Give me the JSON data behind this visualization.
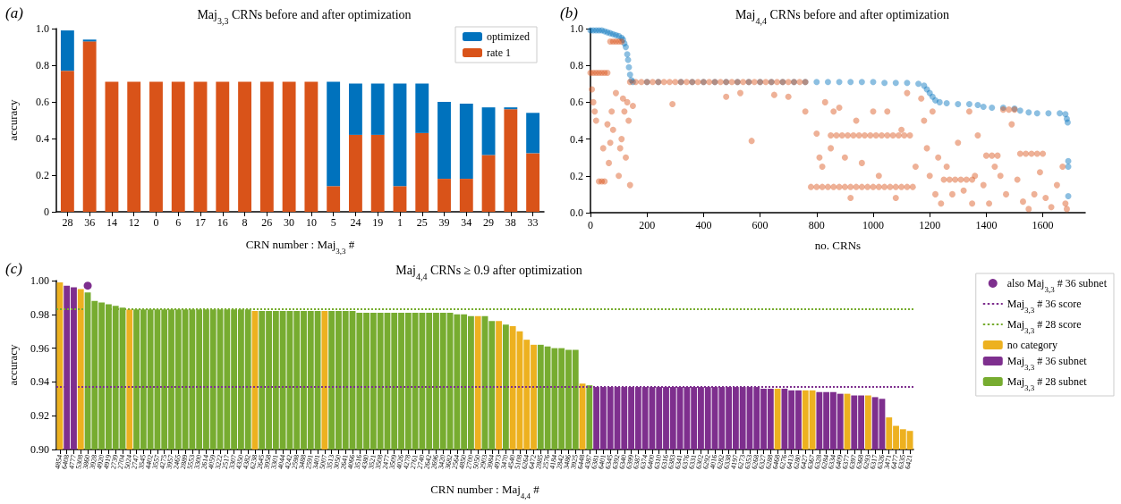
{
  "chart_data": [
    {
      "type": "bar",
      "title": "Maj$_{3,3}$ CRNs before and after optimization",
      "xlabel": "CRN number : Maj$_{3,3}$ #",
      "ylabel": "accuracy",
      "annotations": [
        "(a)"
      ],
      "stacked": true,
      "legend": "top right",
      "categories": [
        "28",
        "36",
        "14",
        "12",
        "0",
        "6",
        "17",
        "16",
        "8",
        "26",
        "30",
        "10",
        "5",
        "24",
        "19",
        "1",
        "25",
        "39",
        "34",
        "29",
        "38",
        "33"
      ],
      "series": [
        {
          "name": "rate 1",
          "color": "#d95319",
          "values": [
            0.77,
            0.93,
            0.71,
            0.71,
            0.71,
            0.71,
            0.71,
            0.71,
            0.71,
            0.71,
            0.71,
            0.71,
            0.14,
            0.42,
            0.42,
            0.14,
            0.43,
            0.18,
            0.18,
            0.31,
            0.56,
            0.32
          ]
        },
        {
          "name": "optimized",
          "color": "#0072bd",
          "values": [
            0.22,
            0.01,
            0,
            0,
            0,
            0,
            0,
            0,
            0,
            0,
            0,
            0,
            0.57,
            0.28,
            0.28,
            0.56,
            0.27,
            0.42,
            0.41,
            0.26,
            0.01,
            0.22
          ]
        }
      ],
      "ylim": [
        0,
        1
      ],
      "yticks": [
        0,
        0.2,
        0.4,
        0.6,
        0.8,
        {
          "value": 1,
          "label": "1.0"
        }
      ]
    },
    {
      "type": "scatter",
      "title": "Maj$_{4,4}$ CRNs before and after optimization",
      "xlabel": "no. CRNs",
      "annotations": [
        "(b)"
      ],
      "marker": "circle",
      "series": [
        {
          "color": "#0072bd",
          "x": [
            0,
            10,
            20,
            30,
            40,
            50,
            60,
            70,
            80,
            90,
            100,
            110,
            115,
            120,
            125,
            130,
            133,
            136,
            140,
            145,
            150,
            200,
            240,
            280,
            320,
            360,
            400,
            440,
            480,
            520,
            560,
            600,
            640,
            680,
            720,
            760,
            800,
            840,
            880,
            920,
            960,
            1000,
            1040,
            1080,
            1120,
            1160,
            1180,
            1190,
            1200,
            1210,
            1220,
            1235,
            1260,
            1300,
            1340,
            1370,
            1390,
            1420,
            1460,
            1500,
            1520,
            1550,
            1580,
            1620,
            1660,
            1680,
            1685,
            1688,
            1690,
            1690,
            1690
          ],
          "values": [
            0.99,
            0.99,
            0.99,
            0.99,
            0.99,
            0.985,
            0.98,
            0.975,
            0.97,
            0.965,
            0.96,
            0.95,
            0.94,
            0.92,
            0.9,
            0.86,
            0.83,
            0.79,
            0.75,
            0.72,
            0.71,
            0.71,
            0.71,
            null,
            0.71,
            0.71,
            0.71,
            0.71,
            0.71,
            0.71,
            0.71,
            0.71,
            0.71,
            0.71,
            0.71,
            0.71,
            0.71,
            0.71,
            0.71,
            0.71,
            0.71,
            0.71,
            0.705,
            0.705,
            0.705,
            0.7,
            0.69,
            0.67,
            0.65,
            0.63,
            0.61,
            0.6,
            0.595,
            0.59,
            0.59,
            0.585,
            0.575,
            0.57,
            0.57,
            0.565,
            0.555,
            0.545,
            0.54,
            0.54,
            0.54,
            0.535,
            0.51,
            0.49,
            0.28,
            0.25,
            0.09
          ]
        },
        {
          "color": "#d95319",
          "x": [
            0,
            10,
            20,
            30,
            40,
            50,
            60,
            70,
            80,
            90,
            100,
            110,
            140,
            160,
            180,
            200,
            220,
            240,
            260,
            280,
            300,
            320,
            340,
            360,
            380,
            400,
            420,
            440,
            460,
            480,
            500,
            520,
            540,
            560,
            580,
            600,
            620,
            640,
            660,
            680,
            700,
            720,
            740,
            760,
            850,
            870,
            890,
            910,
            930,
            950,
            970,
            990,
            1010,
            1030,
            1050,
            1070,
            1090,
            1110,
            1130,
            780,
            800,
            820,
            840,
            860,
            880,
            900,
            920,
            940,
            960,
            980,
            1000,
            1020,
            1040,
            1060,
            1080,
            1100,
            1120,
            1140,
            1250,
            1270,
            1290,
            1310,
            1330,
            1350,
            1400,
            1420,
            1440,
            1460,
            1480,
            1500,
            1520,
            1540,
            1560,
            1580,
            1600,
            5,
            10,
            15,
            20,
            30,
            40,
            50,
            45,
            60,
            70,
            65,
            75,
            80,
            90,
            100,
            105,
            110,
            115,
            120,
            125,
            130,
            135,
            140,
            150,
            290,
            480,
            530,
            570,
            650,
            700,
            760,
            800,
            810,
            820,
            830,
            850,
            860,
            880,
            900,
            920,
            940,
            960,
            1000,
            1020,
            1050,
            1080,
            1100,
            1120,
            1150,
            1170,
            1180,
            1190,
            1200,
            1210,
            1220,
            1230,
            1240,
            1260,
            1280,
            1300,
            1320,
            1340,
            1350,
            1360,
            1370,
            1390,
            1410,
            1430,
            1450,
            1470,
            1490,
            1510,
            1530,
            1550,
            1570,
            1590,
            1610,
            1630,
            1650,
            1670,
            1680,
            1685
          ],
          "values": [
            0.76,
            0.76,
            0.76,
            0.76,
            0.76,
            0.76,
            0.76,
            0.93,
            0.93,
            0.93,
            0.93,
            0.93,
            0.71,
            0.71,
            0.71,
            0.71,
            0.71,
            0.71,
            0.71,
            0.71,
            0.71,
            0.71,
            0.71,
            0.71,
            0.71,
            0.71,
            0.71,
            0.71,
            0.71,
            0.71,
            0.71,
            0.71,
            0.71,
            0.71,
            0.71,
            0.71,
            0.71,
            0.71,
            0.71,
            0.71,
            0.71,
            0.71,
            0.71,
            0.71,
            0.42,
            0.42,
            0.42,
            0.42,
            0.42,
            0.42,
            0.42,
            0.42,
            0.42,
            0.42,
            0.42,
            0.42,
            0.42,
            0.42,
            0.42,
            0.14,
            0.14,
            0.14,
            0.14,
            0.14,
            0.14,
            0.14,
            0.14,
            0.14,
            0.14,
            0.14,
            0.14,
            0.14,
            0.14,
            0.14,
            0.14,
            0.14,
            0.14,
            0.14,
            0.18,
            0.18,
            0.18,
            0.18,
            0.18,
            0.18,
            0.31,
            0.31,
            0.31,
            0.56,
            0.56,
            0.56,
            0.32,
            0.32,
            0.32,
            0.32,
            0.32,
            0.67,
            0.6,
            0.55,
            0.5,
            0.17,
            0.17,
            0.17,
            0.35,
            0.48,
            0.38,
            0.27,
            0.55,
            0.45,
            0.65,
            0.2,
            0.35,
            0.4,
            0.62,
            0.55,
            0.3,
            0.6,
            0.5,
            0.15,
            0.58,
            0.59,
            0.63,
            0.65,
            0.39,
            0.64,
            0.63,
            0.55,
            0.43,
            0.3,
            0.25,
            0.6,
            0.35,
            0.55,
            0.57,
            0.3,
            0.08,
            0.5,
            0.27,
            0.55,
            0.2,
            0.55,
            0.08,
            0.45,
            0.65,
            0.25,
            0.62,
            0.5,
            0.35,
            0.2,
            0.55,
            0.1,
            0.3,
            0.05,
            0.25,
            0.1,
            0.38,
            0.12,
            0.55,
            0.05,
            0.2,
            0.42,
            0.15,
            0.05,
            0.25,
            0.2,
            0.1,
            0.48,
            0.18,
            0.06,
            0.02,
            0.1,
            0.22,
            0.08,
            0.03,
            0.15,
            0.25,
            0.05,
            0.02
          ]
        }
      ],
      "xlim": [
        0,
        1750
      ],
      "xticks": [
        0,
        200,
        400,
        600,
        800,
        1000,
        1200,
        1400,
        1600
      ],
      "ylim": [
        0,
        1
      ],
      "yticks": [
        {
          "value": 0,
          "label": "0.0"
        },
        0.2,
        0.4,
        0.6,
        0.8,
        {
          "value": 1,
          "label": "1.0"
        }
      ]
    },
    {
      "type": "bar",
      "title": "Maj$_{4,4}$ CRNs ≥ 0.9 after optimization",
      "xlabel": "CRN number : Maj$_{4,4}$ #",
      "ylabel": "accuracy",
      "annotations": [
        "(c)"
      ],
      "stacked": true,
      "legend": "right",
      "marker": "circle",
      "categories": [
        "4854",
        "6408",
        "4777",
        "5308",
        "3860",
        "3928",
        "4920",
        "4919",
        "2739",
        "2704",
        "5024",
        "2747",
        "3545",
        "4402",
        "3557",
        "4275",
        "3957",
        "2465",
        "2889",
        "5553",
        "3300",
        "2614",
        "4059",
        "3222",
        "2517",
        "3307",
        "4350",
        "4382",
        "6238",
        "2645",
        "3958",
        "3301",
        "4044",
        "4242",
        "2598",
        "3488",
        "2591",
        "3401",
        "5007",
        "3513",
        "3050",
        "2641",
        "4066",
        "3516",
        "4380",
        "3521",
        "3508",
        "2477",
        "3509",
        "4026",
        "4278",
        "2761",
        "2740",
        "2642",
        "2696",
        "3420",
        "3682",
        "2564",
        "4850",
        "2700",
        "5050",
        "2903",
        "3984",
        "4973",
        "3470",
        "4540",
        "5108",
        "6264",
        "6472",
        "2885",
        "2576",
        "4184",
        "2842",
        "3486",
        "3925",
        "6448",
        "4387",
        "6381",
        "6401",
        "6345",
        "6392",
        "6340",
        "6399",
        "6387",
        "6374",
        "6400",
        "6310",
        "6316",
        "6383",
        "6341",
        "6376",
        "6331",
        "6302",
        "6292",
        "4016",
        "6282",
        "6338",
        "4197",
        "6273",
        "6353",
        "6268",
        "6327",
        "6288",
        "6468",
        "6276",
        "6413",
        "6280",
        "6427",
        "6367",
        "6328",
        "6284",
        "6334",
        "6409",
        "6377",
        "6397",
        "6368",
        "6293",
        "6317",
        "6326",
        "3471",
        "6477",
        "6335",
        "6421"
      ],
      "series": [
        {
          "type": "scatter",
          "name": "also Maj$_{3,3}$ # 36 subnet",
          "color": "#7e2f8e",
          "values": [
            null,
            null,
            null,
            null,
            0.997,
            null,
            null,
            null,
            null,
            null,
            null,
            null,
            null,
            null,
            null,
            null,
            null,
            null,
            null,
            null,
            null,
            null,
            null,
            null,
            null,
            null,
            null,
            null,
            null,
            null,
            null,
            null,
            null,
            null,
            null,
            null,
            null,
            null,
            null,
            null,
            null,
            null,
            null,
            null,
            null,
            null,
            null,
            null,
            null,
            null,
            null,
            null,
            null,
            null,
            null,
            null,
            null,
            null,
            null,
            null,
            null,
            null,
            null,
            null,
            null,
            null,
            null,
            null,
            null,
            null,
            null,
            null,
            null,
            null,
            null,
            null,
            null,
            null,
            null,
            null,
            null,
            null,
            null,
            null,
            null,
            null,
            null,
            null,
            null,
            null,
            null,
            null,
            null,
            null,
            null,
            null,
            null,
            null,
            null,
            null,
            null,
            null,
            null,
            null,
            null,
            null,
            null,
            null,
            null,
            null,
            null,
            null,
            null,
            null,
            null,
            null,
            null,
            null,
            null,
            null,
            null,
            null,
            null
          ]
        },
        {
          "name": "no category",
          "color": "#edb120",
          "values": [
            0.999,
            null,
            null,
            0.995,
            null,
            null,
            null,
            null,
            null,
            null,
            0.983,
            null,
            null,
            null,
            null,
            null,
            null,
            null,
            null,
            null,
            null,
            null,
            null,
            null,
            null,
            null,
            null,
            null,
            0.982,
            null,
            null,
            null,
            null,
            null,
            null,
            null,
            null,
            null,
            0.982,
            null,
            null,
            null,
            null,
            null,
            null,
            null,
            null,
            null,
            null,
            null,
            null,
            null,
            null,
            null,
            null,
            null,
            null,
            null,
            null,
            null,
            0.979,
            null,
            null,
            0.976,
            null,
            0.973,
            0.97,
            0.965,
            0.962,
            null,
            null,
            null,
            null,
            null,
            null,
            0.939,
            null,
            null,
            null,
            null,
            null,
            null,
            null,
            null,
            null,
            null,
            null,
            null,
            null,
            null,
            null,
            null,
            null,
            null,
            null,
            null,
            null,
            null,
            null,
            null,
            null,
            null,
            null,
            0.936,
            null,
            null,
            null,
            0.935,
            0.935,
            null,
            null,
            null,
            null,
            0.933,
            null,
            null,
            0.932,
            null,
            null,
            0.919,
            0.914,
            0.912,
            0.911
          ]
        },
        {
          "name": "Maj$_{3,3}$ # 36 subnet",
          "color": "#7e2f8e",
          "values": [
            null,
            0.997,
            0.996,
            null,
            null,
            null,
            null,
            null,
            null,
            null,
            null,
            null,
            null,
            null,
            null,
            null,
            null,
            null,
            null,
            null,
            null,
            null,
            null,
            null,
            null,
            null,
            null,
            null,
            null,
            null,
            null,
            null,
            null,
            null,
            null,
            null,
            null,
            null,
            null,
            null,
            null,
            null,
            null,
            null,
            null,
            null,
            null,
            null,
            null,
            null,
            null,
            null,
            null,
            null,
            null,
            null,
            null,
            null,
            null,
            null,
            null,
            null,
            null,
            null,
            null,
            null,
            null,
            null,
            null,
            null,
            null,
            null,
            null,
            null,
            null,
            null,
            null,
            0.937,
            0.937,
            0.937,
            0.937,
            0.937,
            0.937,
            0.937,
            0.937,
            0.937,
            0.937,
            0.937,
            0.937,
            0.937,
            0.937,
            0.937,
            0.937,
            0.937,
            0.937,
            0.937,
            0.937,
            0.937,
            0.937,
            0.937,
            0.937,
            0.936,
            0.936,
            null,
            0.936,
            0.935,
            0.935,
            null,
            null,
            0.934,
            0.934,
            0.934,
            0.933,
            null,
            0.932,
            0.932,
            null,
            0.931,
            0.93,
            null,
            null,
            null,
            null
          ]
        },
        {
          "name": "Maj$_{3,3}$ # 28 subnet",
          "color": "#77ac30",
          "values": [
            null,
            null,
            null,
            null,
            0.993,
            0.988,
            0.987,
            0.986,
            0.985,
            0.984,
            null,
            0.983,
            0.983,
            0.983,
            0.983,
            0.983,
            0.983,
            0.983,
            0.983,
            0.983,
            0.983,
            0.983,
            0.983,
            0.983,
            0.983,
            0.983,
            0.983,
            0.983,
            null,
            0.982,
            0.982,
            0.982,
            0.982,
            0.982,
            0.982,
            0.982,
            0.982,
            0.982,
            null,
            0.982,
            0.982,
            0.982,
            0.982,
            0.981,
            0.981,
            0.981,
            0.981,
            0.981,
            0.981,
            0.981,
            0.981,
            0.981,
            0.981,
            0.981,
            0.981,
            0.981,
            0.981,
            0.98,
            0.98,
            0.979,
            null,
            0.979,
            0.976,
            null,
            0.974,
            null,
            null,
            null,
            null,
            0.962,
            0.961,
            0.96,
            0.96,
            0.959,
            0.959,
            null,
            0.938,
            null,
            null,
            null,
            null,
            null,
            null,
            null,
            null,
            null,
            null,
            null,
            null,
            null,
            null,
            null,
            null,
            null,
            null,
            null,
            null,
            null,
            null,
            null,
            null,
            null,
            null,
            null,
            null,
            null,
            null,
            null,
            null,
            null,
            null,
            null,
            null,
            null,
            null,
            null,
            null,
            null,
            null,
            null,
            null,
            null,
            null
          ]
        }
      ],
      "ref_lines": [
        {
          "axis": "y",
          "value": 0.937,
          "label": "Maj$_{3,3}$ # 36 score",
          "color": "#7e2f8e",
          "line_style": "dotted"
        },
        {
          "axis": "y",
          "value": 0.983,
          "label": "Maj$_{3,3}$ # 28 score",
          "color": "#77ac30",
          "line_style": "dotted"
        }
      ],
      "ylim": [
        0.9,
        1
      ],
      "yticks": [
        {
          "value": 0.9,
          "label": "0.90"
        },
        {
          "value": 0.92,
          "label": "0.92"
        },
        {
          "value": 0.94,
          "label": "0.94"
        },
        {
          "value": 0.96,
          "label": "0.96"
        },
        {
          "value": 0.98,
          "label": "0.98"
        },
        {
          "value": 1,
          "label": "1.00"
        }
      ]
    }
  ]
}
